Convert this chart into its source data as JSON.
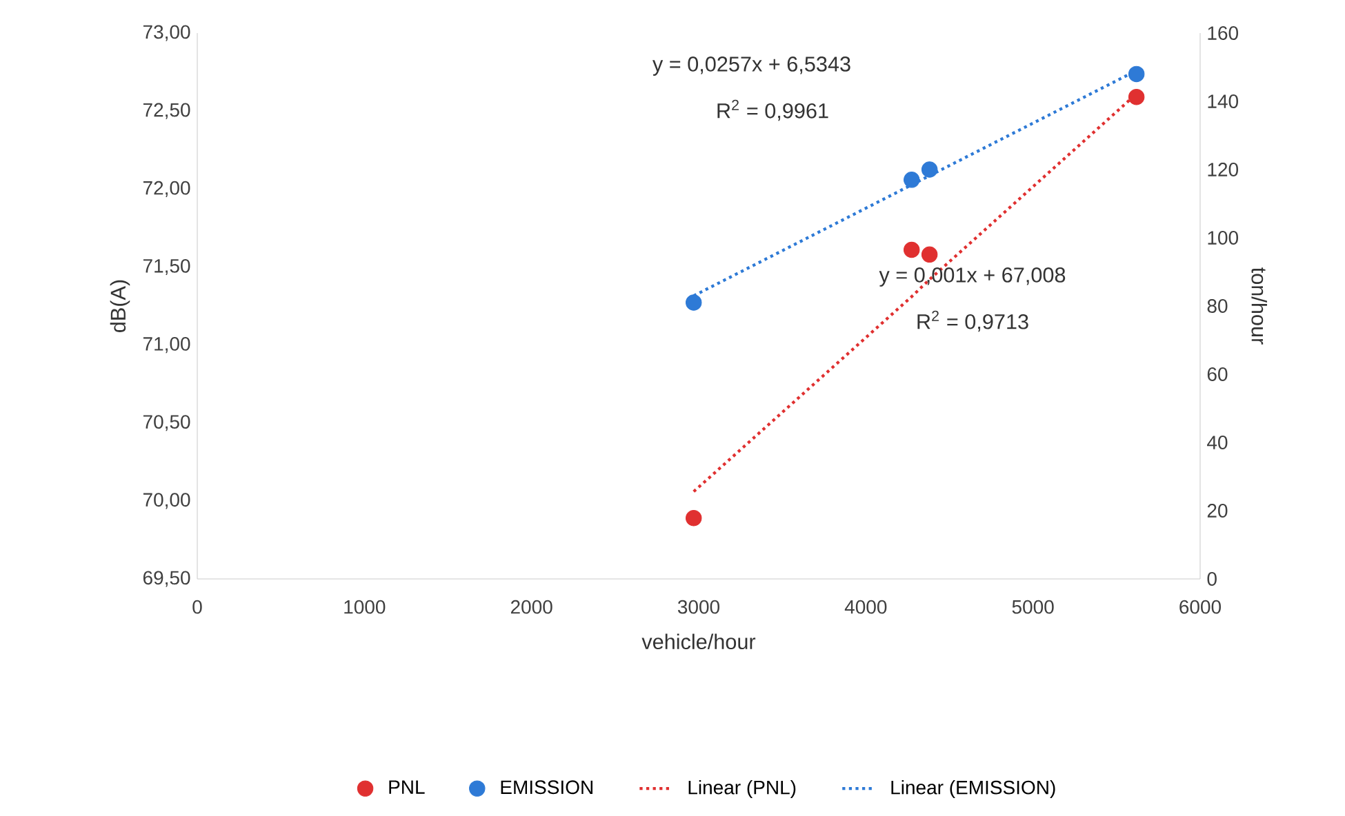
{
  "chart_data": {
    "type": "scatter",
    "xlabel": "vehicle/hour",
    "ylabel": "dB(A)",
    "y2label": "ton/hour",
    "x": [
      2970,
      4274,
      4381,
      5619
    ],
    "series": [
      {
        "name": "PNL",
        "color": "#e03030",
        "marker": "circle",
        "values": [
          69.89,
          71.61,
          71.58,
          72.59
        ]
      },
      {
        "name": "EMISSION",
        "color": "#2e7ad6",
        "marker": "circle",
        "axis": "y2",
        "values": [
          81,
          117,
          120,
          148
        ]
      },
      {
        "name": "Linear (PNL)",
        "type": "line",
        "color": "#e03030",
        "marker": "none",
        "line_style": "dotted",
        "values": [
          70.06,
          71.31,
          71.42,
          72.61
        ]
      },
      {
        "name": "Linear (EMISSION)",
        "type": "line",
        "color": "#2e7ad6",
        "marker": "none",
        "line_style": "dotted",
        "axis": "y2",
        "values": [
          83,
          115.5,
          118.2,
          149
        ]
      }
    ],
    "xlim": [
      0,
      6000
    ],
    "xticks": [
      0,
      1000,
      2000,
      3000,
      4000,
      5000,
      6000
    ],
    "ylim": [
      69.5,
      73
    ],
    "yticks": [
      {
        "value": 69.5,
        "label": "69,50"
      },
      {
        "value": 70,
        "label": "70,00"
      },
      {
        "value": 70.5,
        "label": "70,50"
      },
      {
        "value": 71,
        "label": "71,00"
      },
      {
        "value": 71.5,
        "label": "71,50"
      },
      {
        "value": 72,
        "label": "72,00"
      },
      {
        "value": 72.5,
        "label": "72,50"
      },
      {
        "value": 73,
        "label": "73,00"
      }
    ],
    "y2lim": [
      0,
      160
    ],
    "y2ticks": [
      0,
      20,
      40,
      60,
      80,
      100,
      120,
      140,
      160
    ],
    "annotations": [
      "y = 0,0257x + 6,5343",
      "R$^{2}$ = 0,9961",
      "y = 0,001x + 67,008",
      "R$^{2}$ = 0,9713"
    ],
    "grid": false,
    "legend": "bottom"
  }
}
